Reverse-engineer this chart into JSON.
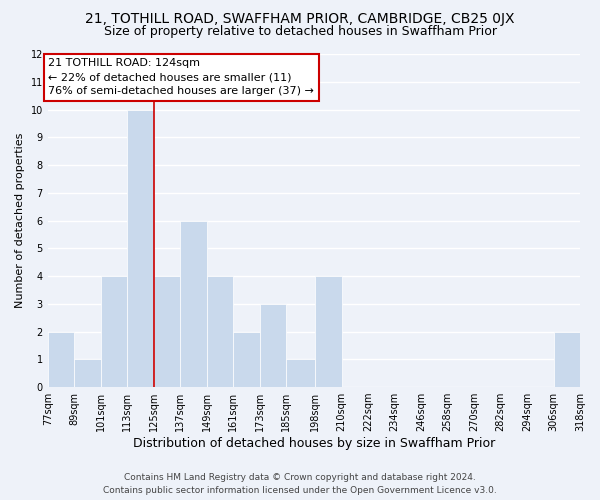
{
  "title": "21, TOTHILL ROAD, SWAFFHAM PRIOR, CAMBRIDGE, CB25 0JX",
  "subtitle": "Size of property relative to detached houses in Swaffham Prior",
  "xlabel": "Distribution of detached houses by size in Swaffham Prior",
  "ylabel": "Number of detached properties",
  "footer_line1": "Contains HM Land Registry data © Crown copyright and database right 2024.",
  "footer_line2": "Contains public sector information licensed under the Open Government Licence v3.0.",
  "bin_labels": [
    "77sqm",
    "89sqm",
    "101sqm",
    "113sqm",
    "125sqm",
    "137sqm",
    "149sqm",
    "161sqm",
    "173sqm",
    "185sqm",
    "198sqm",
    "210sqm",
    "222sqm",
    "234sqm",
    "246sqm",
    "258sqm",
    "270sqm",
    "282sqm",
    "294sqm",
    "306sqm",
    "318sqm"
  ],
  "bin_edges": [
    77,
    89,
    101,
    113,
    125,
    137,
    149,
    161,
    173,
    185,
    198,
    210,
    222,
    234,
    246,
    258,
    270,
    282,
    294,
    306,
    318
  ],
  "bar_heights": [
    2,
    1,
    4,
    10,
    4,
    6,
    4,
    2,
    3,
    1,
    4,
    0,
    0,
    0,
    0,
    0,
    0,
    0,
    0,
    2,
    0
  ],
  "bar_color": "#c9d9ec",
  "bar_edge_color": "white",
  "property_line_x": 125,
  "property_line_color": "#cc0000",
  "ylim": [
    0,
    12
  ],
  "yticks": [
    0,
    1,
    2,
    3,
    4,
    5,
    6,
    7,
    8,
    9,
    10,
    11,
    12
  ],
  "annotation_title": "21 TOTHILL ROAD: 124sqm",
  "annotation_line1": "← 22% of detached houses are smaller (11)",
  "annotation_line2": "76% of semi-detached houses are larger (37) →",
  "annotation_box_color": "#ffffff",
  "annotation_box_edge_color": "#cc0000",
  "background_color": "#eef2f9",
  "grid_color": "#ffffff",
  "title_fontsize": 10,
  "subtitle_fontsize": 9,
  "xlabel_fontsize": 9,
  "ylabel_fontsize": 8,
  "tick_fontsize": 7,
  "annotation_fontsize": 8,
  "footer_fontsize": 6.5
}
